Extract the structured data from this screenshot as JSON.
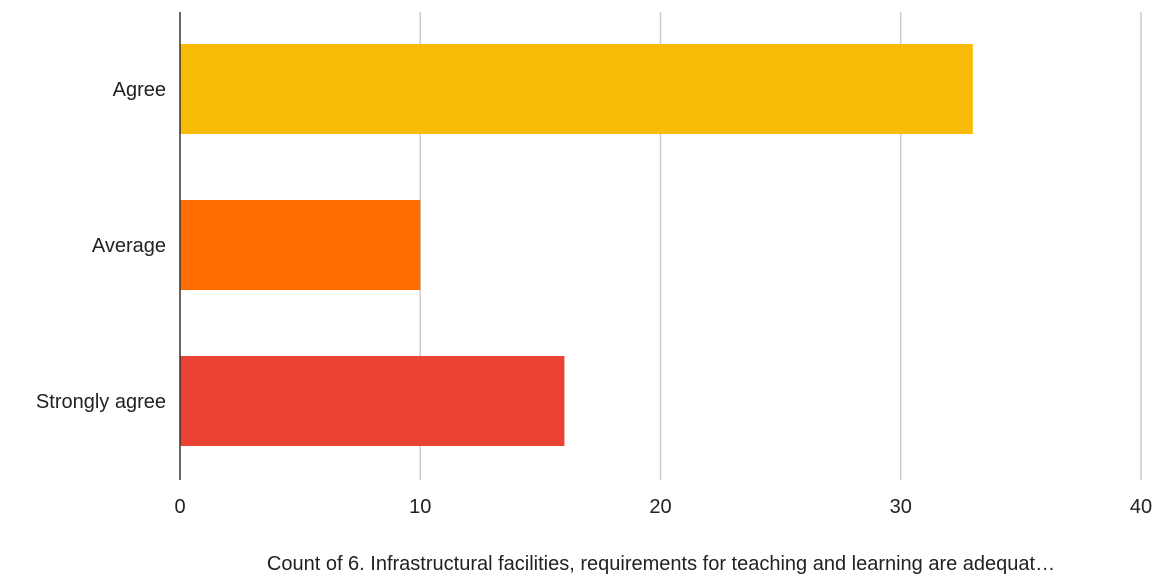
{
  "chart_data": {
    "type": "bar",
    "orientation": "horizontal",
    "categories": [
      "Agree",
      "Average",
      "Strongly agree"
    ],
    "values": [
      33,
      10,
      16
    ],
    "colors": [
      "#F9BC06",
      "#FF6D01",
      "#EA4335"
    ],
    "xlabel": "Count of 6. Infrastructural facilities, requirements for teaching and learning are adequat…",
    "ylabel": "",
    "xlim": [
      0,
      40
    ],
    "xticks": [
      0,
      10,
      20,
      30,
      40
    ],
    "grid": "vertical",
    "legend": "none"
  }
}
